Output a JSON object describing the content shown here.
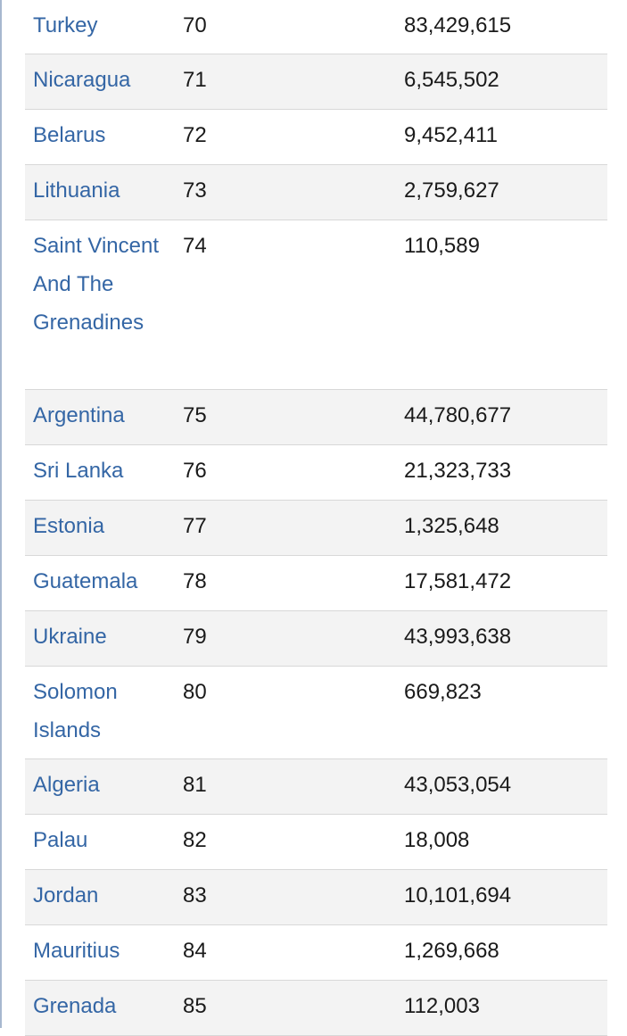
{
  "table": {
    "rows": [
      {
        "country": "Turkey",
        "rank": "70",
        "population": "83,429,615"
      },
      {
        "country": "Nicaragua",
        "rank": "71",
        "population": "6,545,502"
      },
      {
        "country": "Belarus",
        "rank": "72",
        "population": "9,452,411"
      },
      {
        "country": "Lithuania",
        "rank": "73",
        "population": "2,759,627"
      },
      {
        "country": "Saint Vincent And The Grenadines",
        "rank": "74",
        "population": "110,589"
      },
      {
        "country": "Argentina",
        "rank": "75",
        "population": "44,780,677"
      },
      {
        "country": "Sri Lanka",
        "rank": "76",
        "population": "21,323,733"
      },
      {
        "country": "Estonia",
        "rank": "77",
        "population": "1,325,648"
      },
      {
        "country": "Guatemala",
        "rank": "78",
        "population": "17,581,472"
      },
      {
        "country": "Ukraine",
        "rank": "79",
        "population": "43,993,638"
      },
      {
        "country": "Solomon Islands",
        "rank": "80",
        "population": "669,823"
      },
      {
        "country": "Algeria",
        "rank": "81",
        "population": "43,053,054"
      },
      {
        "country": "Palau",
        "rank": "82",
        "population": "18,008"
      },
      {
        "country": "Jordan",
        "rank": "83",
        "population": "10,101,694"
      },
      {
        "country": "Mauritius",
        "rank": "84",
        "population": "1,269,668"
      },
      {
        "country": "Grenada",
        "rank": "85",
        "population": "112,003"
      }
    ]
  },
  "colors": {
    "link": "#3466a5",
    "text": "#1a1a1a",
    "stripe": "#f3f3f3",
    "border": "#d8d8d8"
  }
}
